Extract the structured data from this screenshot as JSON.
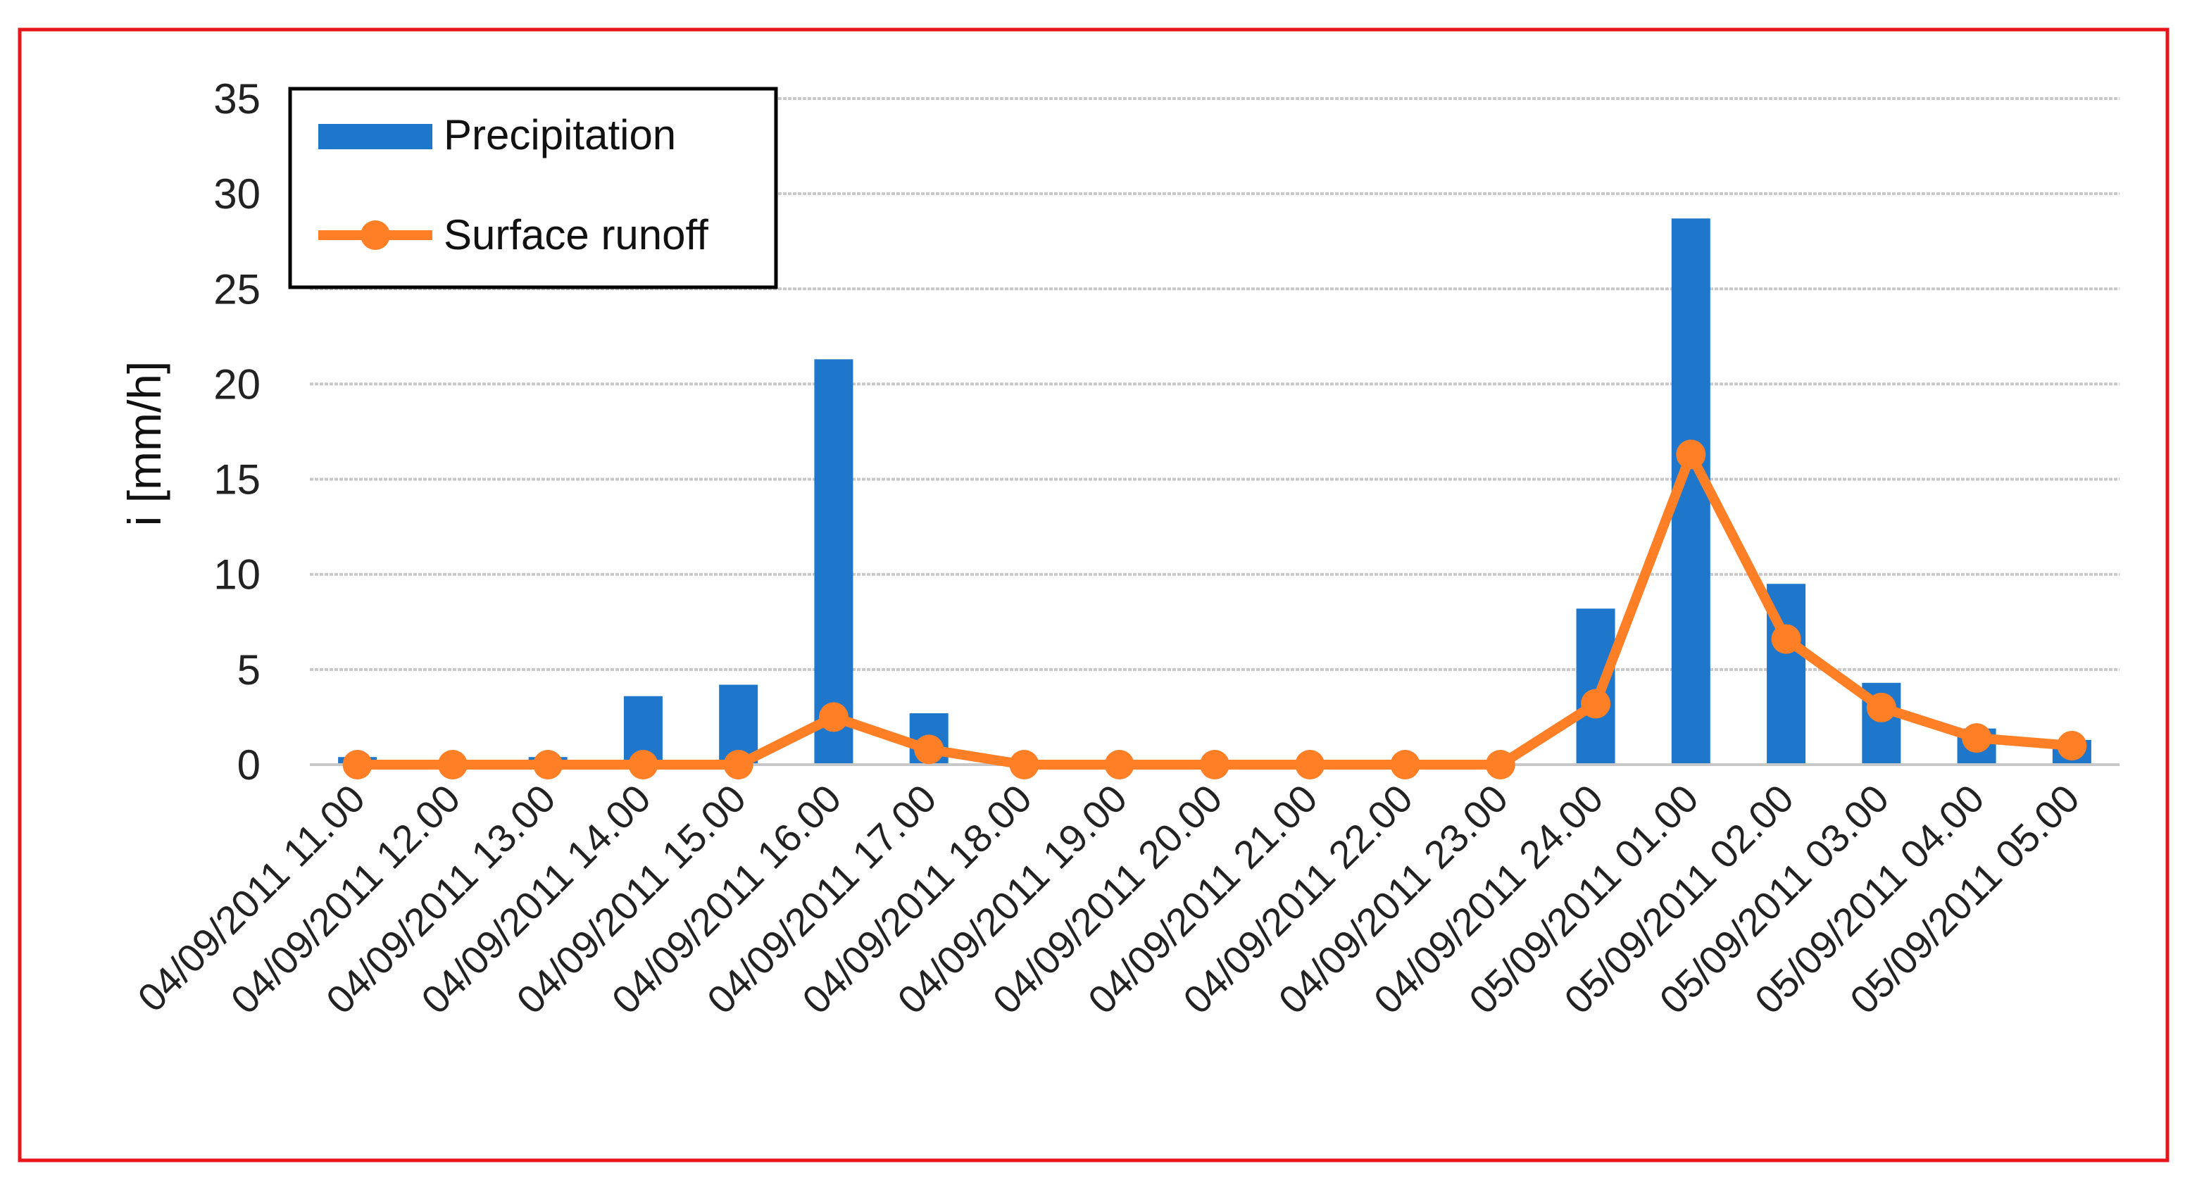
{
  "chart_data": {
    "type": "bar",
    "title": "",
    "xlabel": "",
    "ylabel": "i [mm/h]",
    "ylim": [
      0,
      35
    ],
    "yticks": [
      0,
      5,
      10,
      15,
      20,
      25,
      30,
      35
    ],
    "grid": true,
    "legend_position": "top-left",
    "categories": [
      "04/09/2011 11.00",
      "04/09/2011 12.00",
      "04/09/2011 13.00",
      "04/09/2011 14.00",
      "04/09/2011 15.00",
      "04/09/2011 16.00",
      "04/09/2011 17.00",
      "04/09/2011 18.00",
      "04/09/2011 19.00",
      "04/09/2011 20.00",
      "04/09/2011 21.00",
      "04/09/2011 22.00",
      "04/09/2011 23.00",
      "04/09/2011 24.00",
      "05/09/2011 01.00",
      "05/09/2011 02.00",
      "05/09/2011 03.00",
      "05/09/2011 04.00",
      "05/09/2011 05.00"
    ],
    "series": [
      {
        "name": "Precipitation",
        "kind": "bar",
        "color": "#1f77cc",
        "values": [
          0.4,
          0,
          0.4,
          3.6,
          4.2,
          21.3,
          2.7,
          0,
          0,
          0,
          0,
          0,
          0,
          8.2,
          28.7,
          9.5,
          4.3,
          1.9,
          1.3
        ]
      },
      {
        "name": "Surface runoff",
        "kind": "line",
        "color": "#ff7f27",
        "values": [
          0,
          0,
          0,
          0,
          0,
          2.5,
          0.8,
          0,
          0,
          0,
          0,
          0,
          0,
          3.2,
          16.3,
          6.6,
          3.0,
          1.4,
          1.0
        ]
      }
    ]
  },
  "colors": {
    "frame_border": "#e8151b",
    "grid": "#c8c8c8",
    "axis_text": "#222222"
  }
}
